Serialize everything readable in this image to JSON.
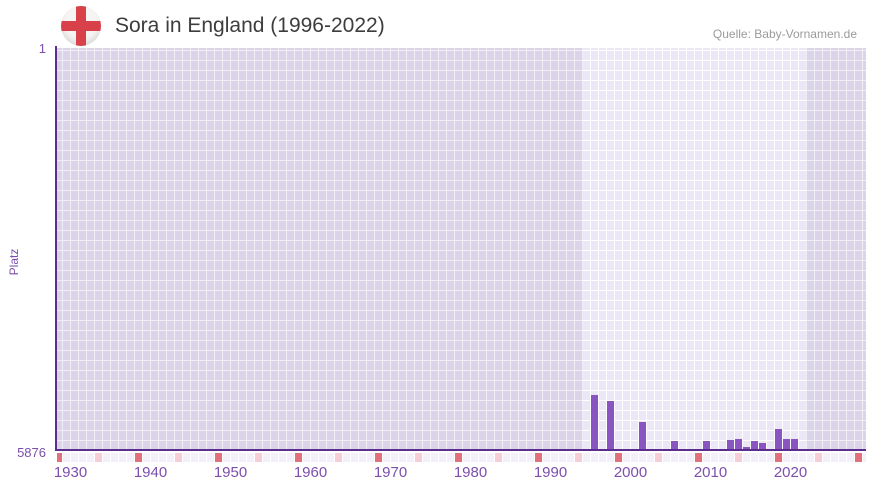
{
  "header": {
    "title": "Sora in England (1996-2022)",
    "flag_icon": "england-flag-icon",
    "source": "Quelle: Baby-Vornamen.de"
  },
  "chart_data": {
    "type": "bar",
    "title": "Sora in England (1996-2022)",
    "xlabel": "",
    "ylabel": "Platz",
    "y_axis": {
      "top_tick_label": "1",
      "bottom_tick_label": "5876",
      "min": 1,
      "max": 5876,
      "inverted": true
    },
    "x_tick_labels": [
      "1930",
      "1940",
      "1950",
      "1960",
      "1970",
      "1980",
      "1990",
      "2000",
      "2010",
      "2020"
    ],
    "x_grid_year_range": [
      1927,
      2031
    ],
    "highlight_year_range": [
      1996,
      2023
    ],
    "decade_tick_years": [
      1930,
      1940,
      1950,
      1960,
      1970,
      1980,
      1990,
      2000,
      2010,
      2020,
      2030
    ],
    "half_decade_tick_years": [
      1935,
      1945,
      1955,
      1965,
      1975,
      1985,
      1995,
      2005,
      2015,
      2025
    ],
    "bars": [
      {
        "year": 1997,
        "rank": 5076
      },
      {
        "year": 1999,
        "rank": 5153
      },
      {
        "year": 2003,
        "rank": 5474
      },
      {
        "year": 2007,
        "rank": 5744
      },
      {
        "year": 2011,
        "rank": 5741
      },
      {
        "year": 2014,
        "rank": 5737
      },
      {
        "year": 2015,
        "rank": 5722
      },
      {
        "year": 2016,
        "rank": 5832
      },
      {
        "year": 2017,
        "rank": 5747
      },
      {
        "year": 2018,
        "rank": 5773
      },
      {
        "year": 2020,
        "rank": 5574
      },
      {
        "year": 2021,
        "rank": 5720
      },
      {
        "year": 2022,
        "rank": 5719
      }
    ],
    "legend": null,
    "grid": "waffle",
    "colors": {
      "bar": "#8a55c2",
      "axis_line": "#5c2d91",
      "axis_text": "#7c4fab",
      "grid_cell_outer": "#dbd4e8",
      "grid_gap_outer": "#f0eef5",
      "grid_cell_highlight": "#ece7f6",
      "grid_gap_highlight": "#ffffff",
      "tick_strip_cell": "#f3f0f9",
      "decade_cell": "#e0707c",
      "half_decade_cell": "#f5cdd7",
      "title_text": "#3d3d3d",
      "source_text": "#9b9b9b",
      "flag_red": "#d8404a"
    }
  }
}
